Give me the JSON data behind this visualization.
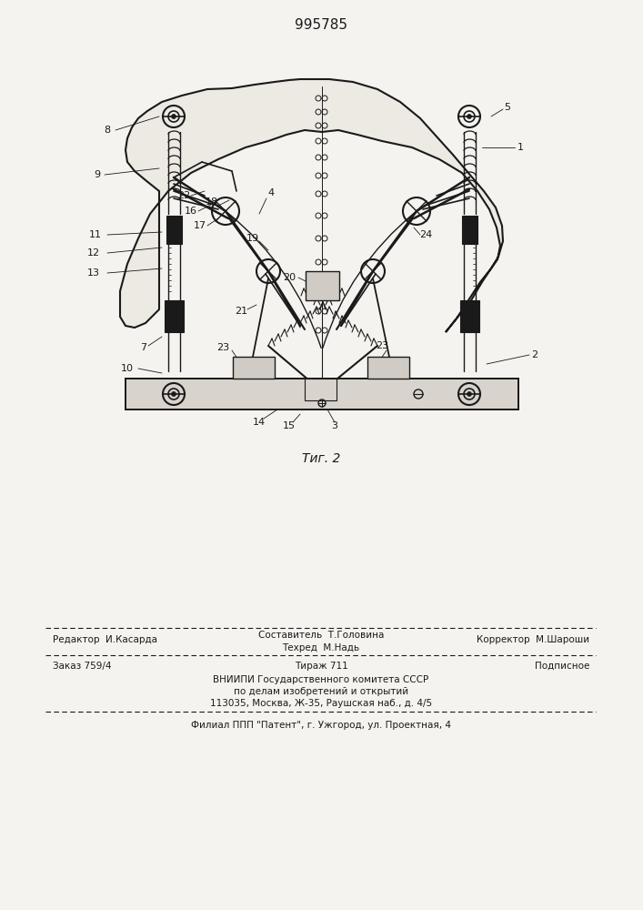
{
  "patent_number": "995785",
  "fig_label": "Τиг. 2",
  "bg_color": "#f5f3ef",
  "line_color": "#1a1a1a",
  "footer": {
    "line1_left": "Редактор  И.Касарда",
    "line1_center": "Составитель  Т.Головина",
    "line1_right": "Корректор  М.Шароши",
    "line2_center": "Техред  М.Надь",
    "line3_left": "Заказ 759/4",
    "line3_center": "Тираж 711",
    "line3_right": "Подписное",
    "line4": "ВНИИПИ Государственного комитета СССР",
    "line5": "по делам изобретений и открытий",
    "line6": "113035, Москва, Ж-35, Раушская наб., д. 4/5",
    "line7": "Филиал ППП \"Патент\", г. Ужгород, ул. Проектная, 4"
  }
}
